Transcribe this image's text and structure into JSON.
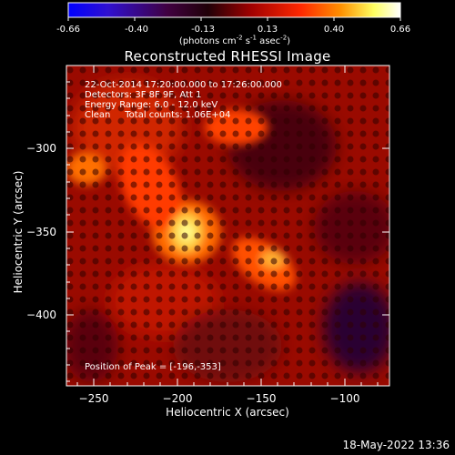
{
  "colorbar": {
    "ticks": [
      "-0.66",
      "-0.40",
      "-0.13",
      "0.13",
      "0.40",
      "0.66"
    ],
    "units_prefix": "(photons cm",
    "units_exp1": "-2",
    "units_mid": " s",
    "units_exp2": "-1",
    "units_mid2": " asec",
    "units_exp3": "-2",
    "units_suffix": ")",
    "range": [
      -0.66,
      0.66
    ]
  },
  "chart_data": {
    "type": "heatmap",
    "title": "Reconstructed RHESSI Image",
    "xlabel": "Heliocentric X (arcsec)",
    "ylabel": "Heliocentric Y (arcsec)",
    "xlim": [
      -266,
      -74
    ],
    "ylim": [
      -447,
      -256
    ],
    "xticks": [
      -250,
      -200,
      -150,
      -100
    ],
    "yticks": [
      -300,
      -350,
      -400
    ],
    "info_lines": [
      "22-Oct-2014 17:20:00.000 to 17:26:00.000",
      "Detectors: 3F 8F 9F, Att 1",
      "Energy Range: 6.0 - 12.0 keV",
      "Clean     Total counts: 1.06E+04"
    ],
    "peak_text": "Position of Peak = [-196,-353]",
    "peak": [
      -196,
      -353
    ],
    "colormap": "red-temperature",
    "grid": false
  },
  "timestamp": "18-May-2022 13:36"
}
